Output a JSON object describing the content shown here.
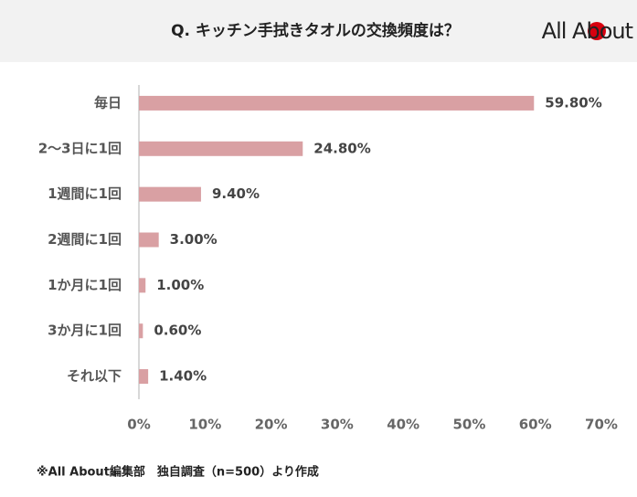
{
  "chart_data": {
    "type": "bar",
    "orientation": "horizontal",
    "title": "Q. キッチン手拭きタオルの交換頻度は？",
    "logo": "All About",
    "categories": [
      "毎日",
      "2～3日に1回",
      "1週間に1回",
      "2週間に1回",
      "1か月に1回",
      "3か月に1回",
      "それ以下"
    ],
    "values": [
      59.8,
      24.8,
      9.4,
      3.0,
      1.0,
      0.6,
      1.4
    ],
    "value_labels": [
      "59.80%",
      "24.80%",
      "9.40%",
      "3.00%",
      "1.00%",
      "0.60%",
      "1.40%"
    ],
    "color": "#d9a0a3",
    "xlim": [
      0,
      70
    ],
    "xticks": [
      {
        "value": 0,
        "label": "0%"
      },
      {
        "value": 10,
        "label": "10%"
      },
      {
        "value": 20,
        "label": "20%"
      },
      {
        "value": 30,
        "label": "30%"
      },
      {
        "value": 40,
        "label": "40%"
      },
      {
        "value": 50,
        "label": "50%"
      },
      {
        "value": 60,
        "label": "60%"
      },
      {
        "value": 70,
        "label": "70%"
      }
    ],
    "note": "※All About編集部　独自調査（n=500）より作成"
  }
}
